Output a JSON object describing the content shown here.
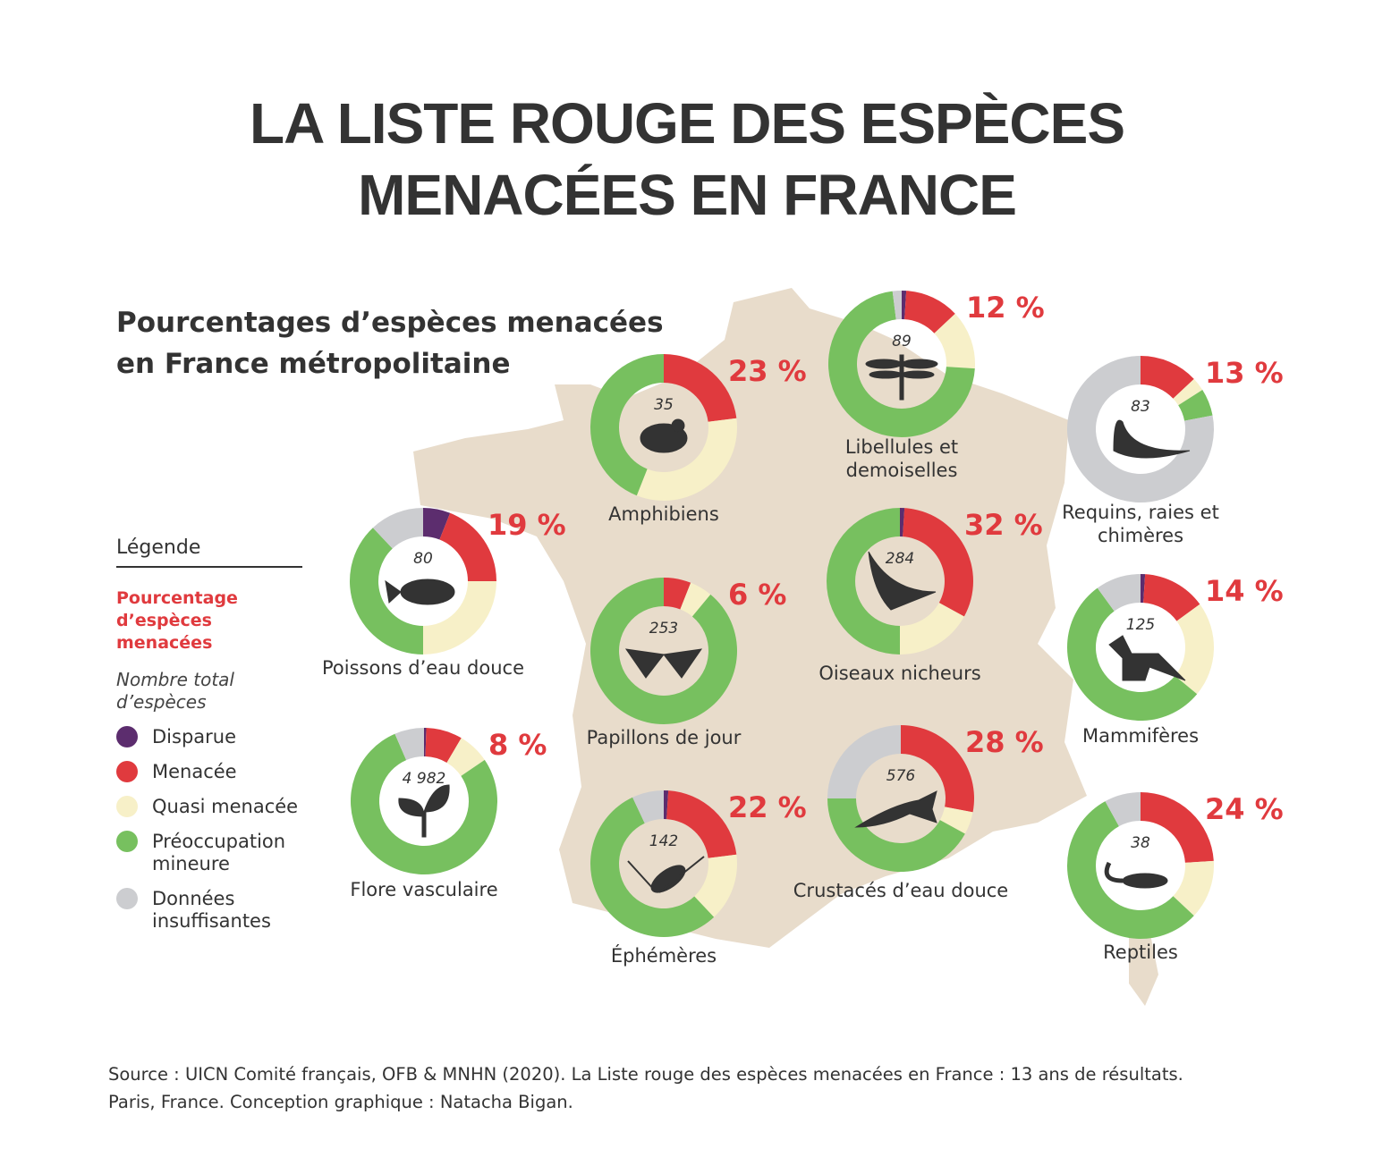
{
  "title_line1": "LA LISTE ROUGE DES ESPÈCES",
  "title_line2": "MENACÉES EN FRANCE",
  "subtitle_line1": "Pourcentages d’espèces menacées",
  "subtitle_line2": "en France métropolitaine",
  "legend": {
    "heading": "Légende",
    "red_label": "Pourcentage d’espèces menacées",
    "total_label": "Nombre total d’espèces",
    "items": [
      {
        "label": "Disparue",
        "color": "#5c2d6e"
      },
      {
        "label": "Menacée",
        "color": "#e03a3e"
      },
      {
        "label": "Quasi menacée",
        "color": "#f7f0c8"
      },
      {
        "label": "Préoccupation mineure",
        "color": "#77c05f"
      },
      {
        "label": "Données insuffisantes",
        "color": "#cccdd0"
      }
    ]
  },
  "colors": {
    "map": "#e8dccb",
    "threatened_text": "#e03a3e"
  },
  "chart_data": {
    "type": "donut",
    "segment_order": [
      "Disparue",
      "Menacée",
      "Quasi menacée",
      "Préoccupation mineure",
      "Données insuffisantes"
    ],
    "groups": [
      {
        "name": "Poissons d’eau douce",
        "total": "80",
        "threatened_pct": "19 %",
        "icon": "fish-icon",
        "shares": [
          6,
          19,
          25,
          38,
          12
        ]
      },
      {
        "name": "Amphibiens",
        "total": "35",
        "threatened_pct": "23 %",
        "icon": "frog-icon",
        "shares": [
          0,
          23,
          33,
          44,
          0
        ]
      },
      {
        "name": "Papillons de jour",
        "total": "253",
        "threatened_pct": "6 %",
        "icon": "butterfly-icon",
        "shares": [
          0,
          6,
          5,
          89,
          0
        ]
      },
      {
        "name": "Libellules et demoiselles",
        "total": "89",
        "threatened_pct": "12 %",
        "icon": "dragonfly-icon",
        "shares": [
          1,
          12,
          13,
          72,
          2
        ]
      },
      {
        "name": "Oiseaux nicheurs",
        "total": "284",
        "threatened_pct": "32 %",
        "icon": "bird-icon",
        "shares": [
          1,
          32,
          17,
          50,
          0
        ]
      },
      {
        "name": "Requins, raies et chimères",
        "total": "83",
        "threatened_pct": "13 %",
        "icon": "shark-icon",
        "shares": [
          0,
          13,
          3,
          6,
          78
        ]
      },
      {
        "name": "Mammifères",
        "total": "125",
        "threatened_pct": "14 %",
        "icon": "fox-icon",
        "shares": [
          1,
          14,
          21,
          54,
          10
        ]
      },
      {
        "name": "Flore vasculaire",
        "total": "4 982",
        "threatened_pct": "8 %",
        "icon": "plant-icon",
        "shares": [
          0.5,
          8,
          7,
          78,
          6.5
        ]
      },
      {
        "name": "Éphémères",
        "total": "142",
        "threatened_pct": "22 %",
        "icon": "mayfly-icon",
        "shares": [
          1,
          22,
          15,
          55,
          7
        ]
      },
      {
        "name": "Crustacés d’eau douce",
        "total": "576",
        "threatened_pct": "28 %",
        "icon": "crayfish-icon",
        "shares": [
          0,
          28,
          5,
          42,
          25
        ]
      },
      {
        "name": "Reptiles",
        "total": "38",
        "threatened_pct": "24 %",
        "icon": "lizard-icon",
        "shares": [
          0,
          24,
          13,
          55,
          8
        ]
      }
    ]
  },
  "source_line1": "Source : UICN Comité français, OFB & MNHN (2020). La Liste rouge des espèces menacées en France : 13 ans de résultats.",
  "source_line2": "Paris, France. Conception graphique : Natacha Bigan."
}
